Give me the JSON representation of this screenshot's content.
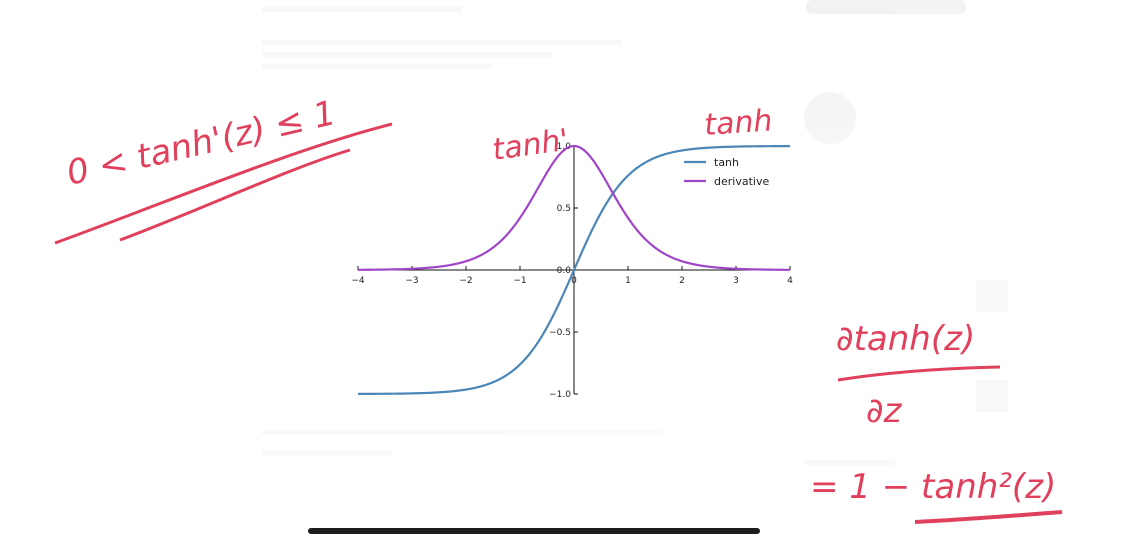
{
  "chart_data": {
    "type": "line",
    "title": "",
    "xlabel": "",
    "ylabel": "",
    "xlim": [
      -4,
      4
    ],
    "ylim": [
      -1.0,
      1.0
    ],
    "xticks": [
      "−4",
      "−3",
      "−2",
      "−1",
      "0",
      "1",
      "2",
      "3",
      "4"
    ],
    "yticks": [
      "−1.0",
      "−0.5",
      "0.0",
      "0.5",
      "1.0"
    ],
    "legend_position": "top-right",
    "series": [
      {
        "name": "tanh",
        "color": "#4a87b8",
        "function": "tanh(x)",
        "x": [
          -4,
          -3,
          -2,
          -1,
          0,
          1,
          2,
          3,
          4
        ],
        "values": [
          -0.999,
          -0.995,
          -0.964,
          -0.762,
          0.0,
          0.762,
          0.964,
          0.995,
          0.999
        ]
      },
      {
        "name": "derivative",
        "color": "#a044c8",
        "function": "1 - tanh(x)^2",
        "x": [
          -4,
          -3,
          -2,
          -1,
          0,
          1,
          2,
          3,
          4
        ],
        "values": [
          0.001,
          0.01,
          0.071,
          0.42,
          1.0,
          0.42,
          0.071,
          0.01,
          0.001
        ]
      }
    ]
  },
  "annotations": {
    "bound": "0 < tanh'(z) ≤ 1",
    "label_derivative": "tanh'",
    "label_tanh": "tanh",
    "partial_numerator": "∂tanh(z)",
    "partial_denominator": "∂z",
    "identity": "= 1 − tanh²(z)",
    "ink_color": "#e0405c"
  }
}
